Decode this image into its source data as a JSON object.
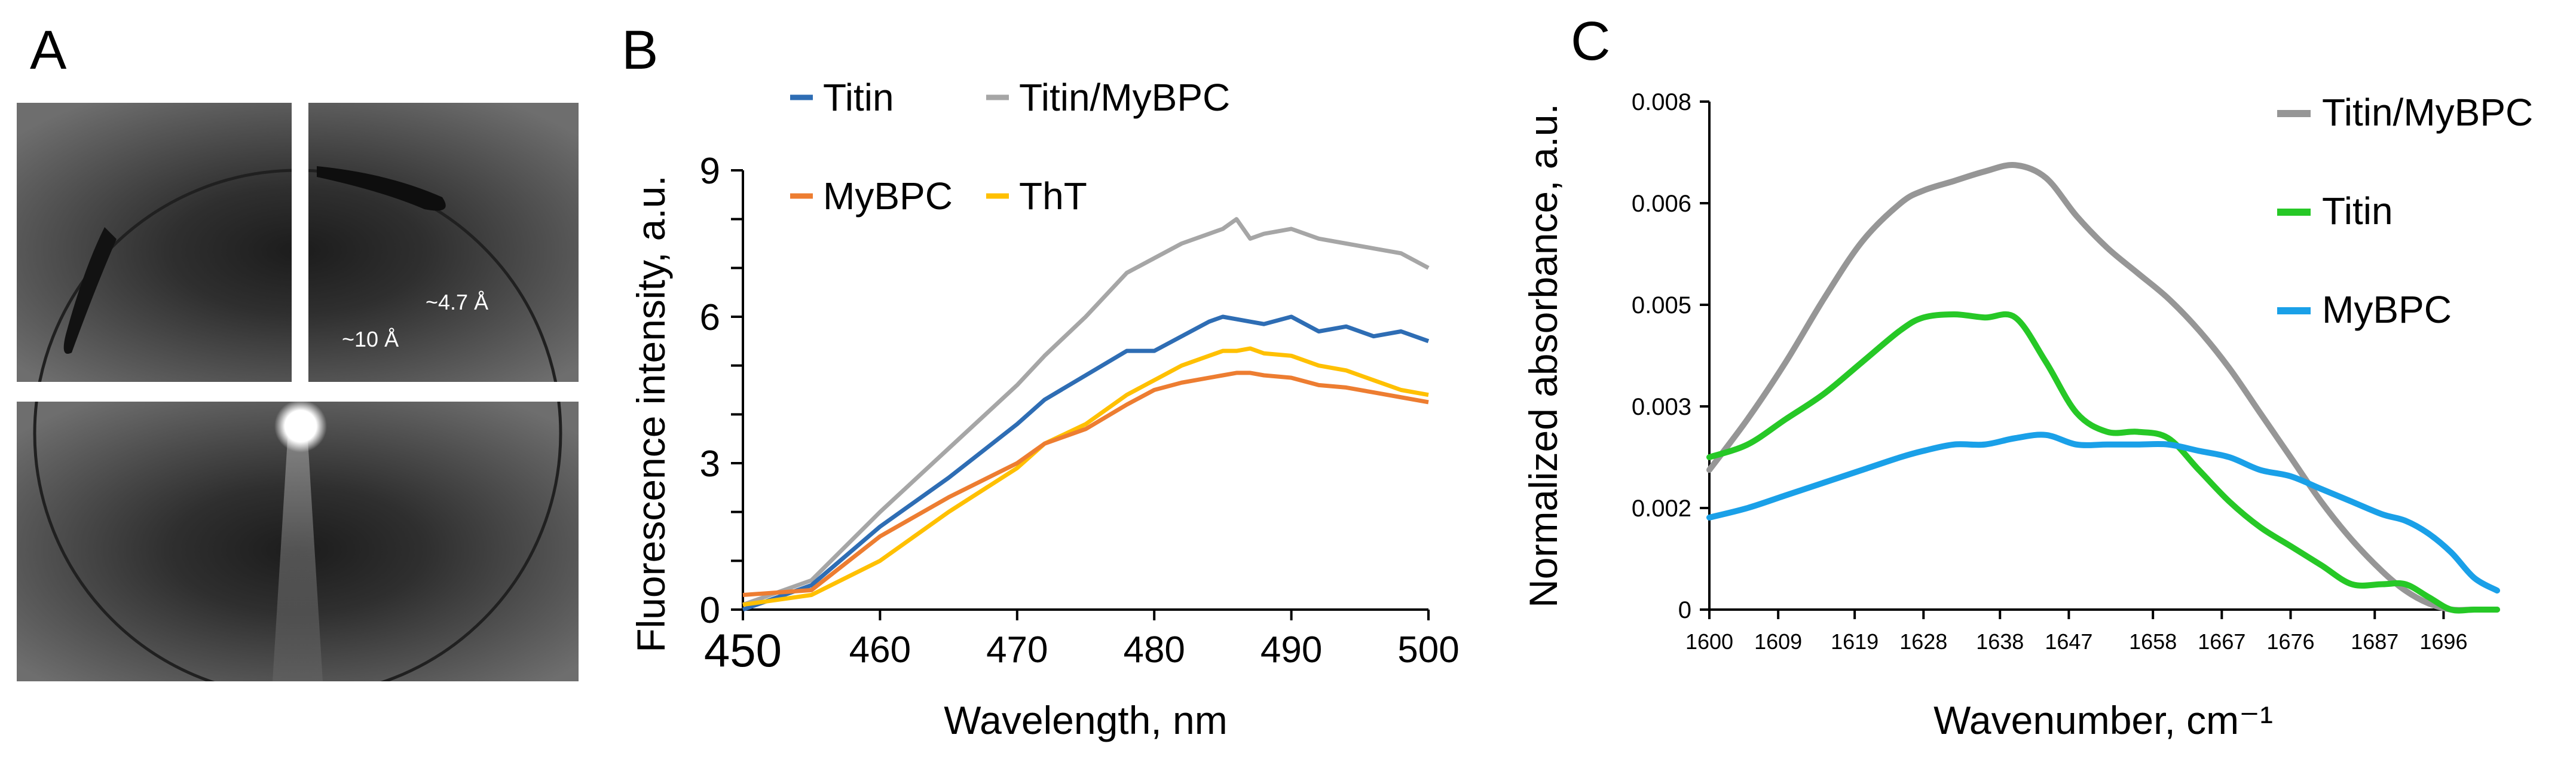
{
  "panels": {
    "A": {
      "letter": "A"
    },
    "B": {
      "letter": "B"
    },
    "C": {
      "letter": "C"
    }
  },
  "chart_data": [
    {
      "id": "A",
      "type": "image",
      "description": "X-ray diffraction pattern",
      "annotations": [
        "~4.7 Å",
        "~10 Å"
      ],
      "colors": {
        "background": "#4a4a4a",
        "ring": "#1e1e1e",
        "beam": "#ffffff"
      }
    },
    {
      "id": "B",
      "type": "line",
      "title": "",
      "xlabel": "Wavelength, nm",
      "ylabel": "Fluorescence intensity, a.u.",
      "xlim": [
        450,
        500
      ],
      "ylim": [
        0,
        9
      ],
      "xticks": [
        450,
        460,
        470,
        480,
        490,
        500
      ],
      "yticks": [
        0,
        3,
        6,
        9
      ],
      "x": [
        450,
        455,
        460,
        465,
        470,
        472,
        475,
        478,
        480,
        482,
        484,
        485,
        486,
        487,
        488,
        490,
        492,
        494,
        496,
        498,
        500
      ],
      "series": [
        {
          "name": "Titin",
          "color": "#2e6db4",
          "values": [
            0.0,
            0.5,
            1.7,
            2.7,
            3.8,
            4.3,
            4.8,
            5.3,
            5.3,
            5.6,
            5.9,
            6.0,
            5.95,
            5.9,
            5.85,
            6.0,
            5.7,
            5.8,
            5.6,
            5.7,
            5.5
          ]
        },
        {
          "name": "Titin/MyBPC",
          "color": "#a6a6a6",
          "values": [
            0.1,
            0.6,
            2.0,
            3.3,
            4.6,
            5.2,
            6.0,
            6.9,
            7.2,
            7.5,
            7.7,
            7.8,
            8.0,
            7.6,
            7.7,
            7.8,
            7.6,
            7.5,
            7.4,
            7.3,
            7.0
          ]
        },
        {
          "name": "MyBPC",
          "color": "#ed7d31",
          "values": [
            0.3,
            0.4,
            1.5,
            2.3,
            3.0,
            3.4,
            3.7,
            4.2,
            4.5,
            4.65,
            4.75,
            4.8,
            4.85,
            4.85,
            4.8,
            4.75,
            4.6,
            4.55,
            4.45,
            4.35,
            4.25
          ]
        },
        {
          "name": "ThT",
          "color": "#ffc000",
          "values": [
            0.1,
            0.3,
            1.0,
            2.0,
            2.9,
            3.4,
            3.8,
            4.4,
            4.7,
            5.0,
            5.2,
            5.3,
            5.3,
            5.35,
            5.25,
            5.2,
            5.0,
            4.9,
            4.7,
            4.5,
            4.4
          ]
        }
      ],
      "legend": [
        "Titin",
        "Titin/MyBPC",
        "MyBPC",
        "ThT"
      ]
    },
    {
      "id": "C",
      "type": "line",
      "title": "",
      "xlabel": "Wavenumber, cm⁻¹",
      "ylabel": "Normalized absorbance, a.u.",
      "xlim": [
        1600,
        1703
      ],
      "ylim": [
        0,
        0.008
      ],
      "xticks": [
        1600,
        1609,
        1619,
        1628,
        1638,
        1647,
        1658,
        1667,
        1676,
        1687,
        1696
      ],
      "yticks": [
        "0",
        "0.002",
        "0.003",
        "0.005",
        "0.006",
        "0.008"
      ],
      "ytick_values": [
        0,
        0.0016,
        0.0032,
        0.0048,
        0.0064,
        0.008
      ],
      "x": [
        1600,
        1605,
        1610,
        1615,
        1620,
        1625,
        1628,
        1632,
        1636,
        1640,
        1644,
        1648,
        1652,
        1656,
        1660,
        1664,
        1668,
        1672,
        1676,
        1680,
        1684,
        1688,
        1691,
        1694,
        1697,
        1700,
        1703
      ],
      "series": [
        {
          "name": "Titin/MyBPC",
          "color": "#969696",
          "values": [
            0.0022,
            0.003,
            0.0039,
            0.0049,
            0.0058,
            0.0064,
            0.0066,
            0.00675,
            0.0069,
            0.007,
            0.0068,
            0.0062,
            0.0057,
            0.0053,
            0.0049,
            0.0044,
            0.0038,
            0.0031,
            0.0024,
            0.0017,
            0.0011,
            0.0006,
            0.0003,
            0.0001,
            0.0,
            0.0,
            0.0
          ]
        },
        {
          "name": "Titin",
          "color": "#26c826",
          "values": [
            0.0024,
            0.0026,
            0.003,
            0.0034,
            0.0039,
            0.0044,
            0.0046,
            0.00465,
            0.0046,
            0.0046,
            0.0039,
            0.0031,
            0.0028,
            0.0028,
            0.0027,
            0.0022,
            0.0017,
            0.0013,
            0.001,
            0.0007,
            0.0004,
            0.0004,
            0.0004,
            0.0002,
            0.0,
            0.0,
            0.0
          ]
        },
        {
          "name": "MyBPC",
          "color": "#1aa0e8",
          "values": [
            0.00145,
            0.0016,
            0.0018,
            0.002,
            0.0022,
            0.0024,
            0.0025,
            0.0026,
            0.0026,
            0.0027,
            0.00275,
            0.0026,
            0.0026,
            0.0026,
            0.0026,
            0.0025,
            0.0024,
            0.0022,
            0.0021,
            0.0019,
            0.0017,
            0.0015,
            0.0014,
            0.0012,
            0.0009,
            0.0005,
            0.0003
          ]
        }
      ],
      "legend": [
        "Titin/MyBPC",
        "Titin",
        "MyBPC"
      ]
    }
  ]
}
